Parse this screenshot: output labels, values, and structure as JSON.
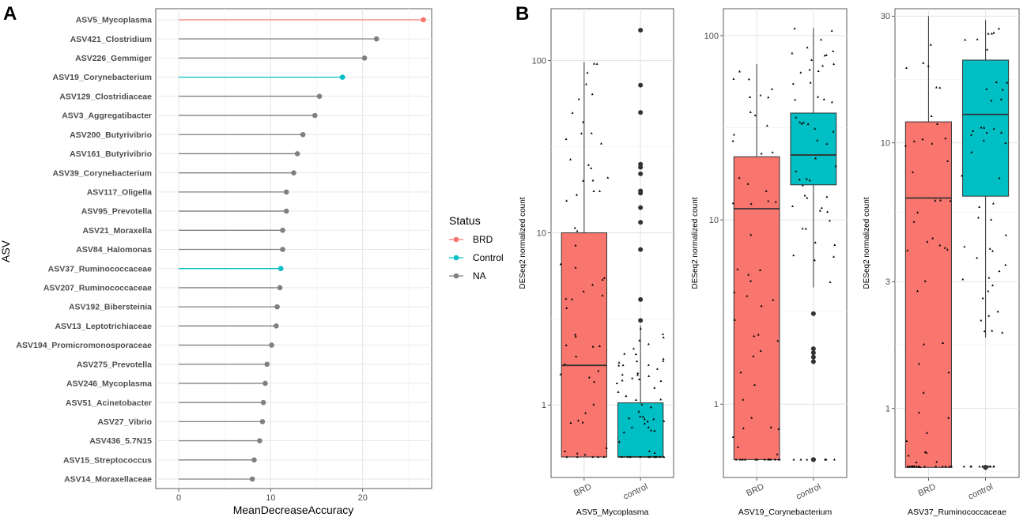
{
  "panel_labels": {
    "a": "A",
    "b": "B"
  },
  "legend": {
    "title": "Status",
    "items": [
      {
        "label": "BRD",
        "color": "#F8766D"
      },
      {
        "label": "Control",
        "color": "#00BFC4"
      },
      {
        "label": "NA",
        "color": "#808080"
      }
    ]
  },
  "chart_data": [
    {
      "type": "lollipop",
      "panel": "A",
      "xlabel": "MeanDecreaseAccuracy",
      "ylabel": "ASV",
      "xlim": [
        -2.5,
        27.5
      ],
      "xticks": [
        0,
        10,
        20
      ],
      "categories": [
        "ASV5_Mycoplasma",
        "ASV421_Clostridium",
        "ASV226_Gemmiger",
        "ASV19_Corynebacterium",
        "ASV129_Clostridiaceae",
        "ASV3_Aggregatibacter",
        "ASV200_Butyrivibrio",
        "ASV161_Butyrivibrio",
        "ASV39_Corynebacterium",
        "ASV117_Oligella",
        "ASV95_Prevotella",
        "ASV21_Moraxella",
        "ASV84_Halomonas",
        "ASV37_Ruminococcaceae",
        "ASV207_Ruminococcaceae",
        "ASV192_Bibersteinia",
        "ASV13_Leptotrichiaceae",
        "ASV194_Promicromonosporaceae",
        "ASV275_Prevotella",
        "ASV246_Mycoplasma",
        "ASV51_Acinetobacter",
        "ASV27_Vibrio",
        "ASV436_5.7N15",
        "ASV15_Streptococcus",
        "ASV14_Moraxellaceae"
      ],
      "values": [
        26.6,
        21.5,
        20.2,
        17.8,
        15.3,
        14.8,
        13.5,
        12.9,
        12.5,
        11.7,
        11.7,
        11.3,
        11.3,
        11.1,
        11.0,
        10.7,
        10.6,
        10.1,
        9.6,
        9.4,
        9.2,
        9.1,
        8.8,
        8.2,
        8.0
      ],
      "status": [
        "BRD",
        "NA",
        "NA",
        "Control",
        "NA",
        "NA",
        "NA",
        "NA",
        "NA",
        "NA",
        "NA",
        "NA",
        "NA",
        "Control",
        "NA",
        "NA",
        "NA",
        "NA",
        "NA",
        "NA",
        "NA",
        "NA",
        "NA",
        "NA",
        "NA"
      ]
    },
    {
      "type": "boxplot",
      "panel": "B",
      "yscale": "log10",
      "ylabel": "DESeq2 normalized count",
      "categories": [
        "BRD",
        "control"
      ],
      "facets": [
        {
          "title": "ASV5_Mycoplasma",
          "ylim": [
            0.38,
            200
          ],
          "yticks": [
            1,
            10,
            100
          ],
          "boxes": [
            {
              "group": "BRD",
              "q1": 0.5,
              "median": 1.7,
              "q3": 10,
              "whisker_low": 0.5,
              "whisker_high": 98
            },
            {
              "group": "control",
              "q1": 0.5,
              "median": 0.5,
              "q3": 1.03,
              "whisker_low": 0.5,
              "whisker_high": 2.9
            }
          ],
          "outliers": {
            "control": [
              3.1,
              4.1,
              8,
              11.5,
              14,
              17,
              17.5,
              22,
              24,
              25,
              50,
              72,
              150
            ]
          }
        },
        {
          "title": "ASV19_Corynebacterium",
          "ylim": [
            0.4,
            140
          ],
          "yticks": [
            1,
            10,
            100
          ],
          "boxes": [
            {
              "group": "BRD",
              "q1": 0.5,
              "median": 11.5,
              "q3": 22,
              "whisker_low": 0.5,
              "whisker_high": 70
            },
            {
              "group": "control",
              "q1": 15.5,
              "median": 22.5,
              "q3": 38,
              "whisker_low": 4.3,
              "whisker_high": 110
            }
          ],
          "outliers": {
            "control": [
              0.5,
              0.5,
              1.7,
              1.8,
              1.9,
              2.0,
              3.1
            ]
          }
        },
        {
          "title": "ASV37_Ruminococcaceae",
          "ylim": [
            0.55,
            32
          ],
          "yticks": [
            1,
            3,
            10,
            30
          ],
          "boxes": [
            {
              "group": "BRD",
              "q1": 0.6,
              "median": 6.2,
              "q3": 12,
              "whisker_low": 0.6,
              "whisker_high": 30
            },
            {
              "group": "control",
              "q1": 6.3,
              "median": 12.8,
              "q3": 20.5,
              "whisker_low": 1.85,
              "whisker_high": 29
            }
          ],
          "outliers": {
            "control": [
              0.6,
              0.6,
              0.6,
              0.6,
              0.6,
              0.6
            ]
          }
        }
      ]
    }
  ]
}
